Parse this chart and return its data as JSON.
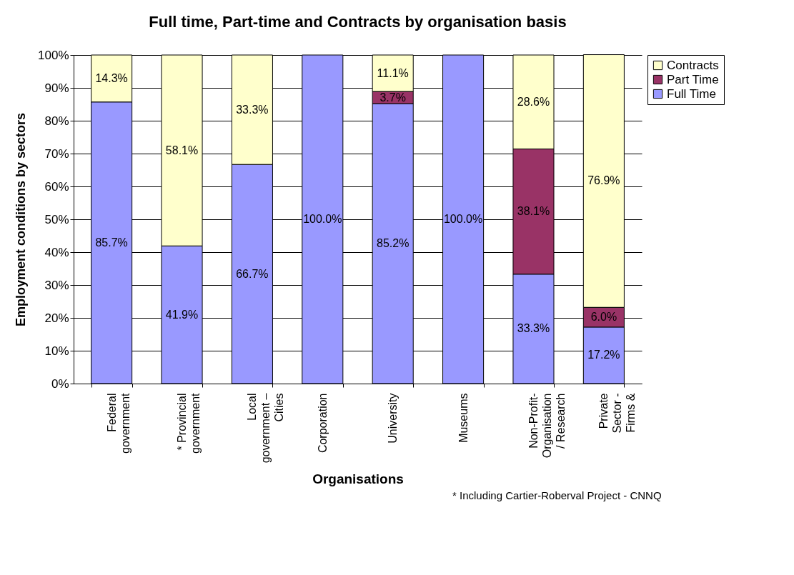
{
  "chart_data": {
    "type": "bar",
    "title": "Full time, Part-time and Contracts by organisation basis",
    "xlabel": "Organisations",
    "ylabel": "Employment conditions by sectors",
    "categories": [
      "Federal government",
      "* Provincial government",
      "Local government – Cities",
      "Corporation",
      "University",
      "Museums",
      "Non-Profit-Organisation / Research",
      "Private Sector - Firms &"
    ],
    "stacked": true,
    "series": [
      {
        "name": "Full Time",
        "color": "#9999ff",
        "values": [
          85.7,
          41.9,
          66.7,
          100.0,
          85.2,
          100.0,
          33.3,
          17.2
        ],
        "value_labels": [
          "85.7%",
          "41.9%",
          "66.7%",
          "100.0%",
          "85.2%",
          "100.0%",
          "33.3%",
          "17.2%"
        ]
      },
      {
        "name": "Part Time",
        "color": "#993366",
        "values": [
          null,
          null,
          null,
          null,
          3.7,
          null,
          38.1,
          6.0
        ],
        "value_labels": [
          null,
          null,
          null,
          null,
          "3.7%",
          null,
          "38.1%",
          "6.0%"
        ]
      },
      {
        "name": "Contracts",
        "color": "#ffffcc",
        "values": [
          14.3,
          58.1,
          33.3,
          null,
          11.1,
          null,
          28.6,
          76.9
        ],
        "value_labels": [
          "14.3%",
          "58.1%",
          "33.3%",
          null,
          "11.1%",
          null,
          "28.6%",
          "76.9%"
        ]
      }
    ],
    "ylim": [
      0,
      100
    ],
    "yticks": [
      {
        "value": 0,
        "label": "0%"
      },
      {
        "value": 10,
        "label": "10%"
      },
      {
        "value": 20,
        "label": "20%"
      },
      {
        "value": 30,
        "label": "30%"
      },
      {
        "value": 40,
        "label": "40%"
      },
      {
        "value": 50,
        "label": "50%"
      },
      {
        "value": 60,
        "label": "60%"
      },
      {
        "value": 70,
        "label": "70%"
      },
      {
        "value": 80,
        "label": "80%"
      },
      {
        "value": 90,
        "label": "90%"
      },
      {
        "value": 100,
        "label": "100%"
      }
    ],
    "grid": "y",
    "legend": "right",
    "annotations": [
      "* Including Cartier-Roberval Project - CNNQ"
    ]
  }
}
